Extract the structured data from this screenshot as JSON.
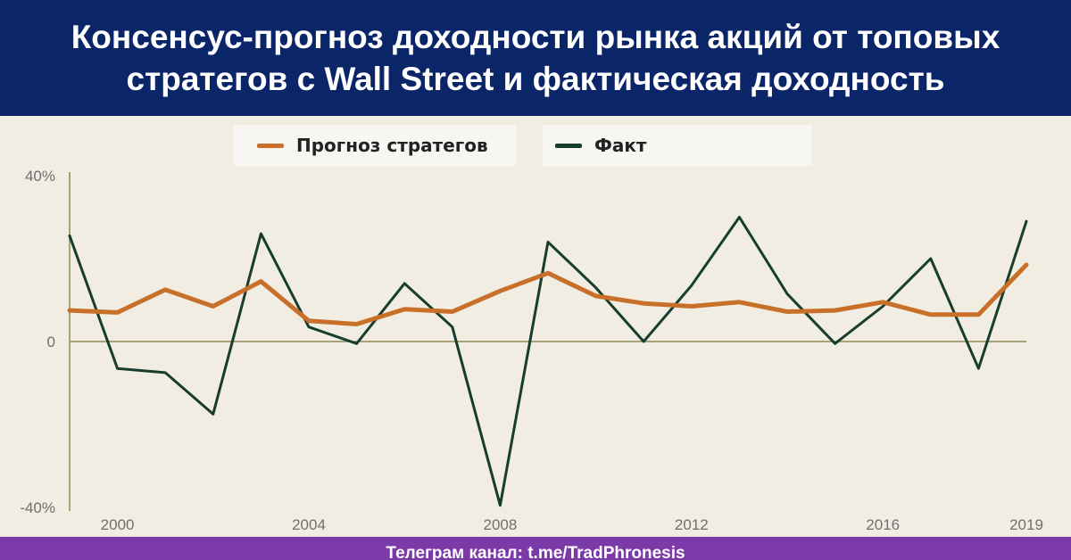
{
  "header": {
    "title": "Консенсус-прогноз доходности рынка акций от топовых\nстратегов с Wall Street и фактическая доходность"
  },
  "footer": {
    "text": "Телеграм канал: t.me/TradPhronesis"
  },
  "colors": {
    "header_bg": "#0b2569",
    "forecast": "#c8702a",
    "actual": "#173d2c",
    "axis": "#a9a17a",
    "footer_bg": "#7c3aa8",
    "background": "#f1ede2"
  },
  "chart_data": {
    "type": "line",
    "title": "",
    "xlabel": "",
    "ylabel": "",
    "x_range": [
      1999,
      2019
    ],
    "ylim": [
      -40,
      40
    ],
    "y_ticks": [
      {
        "value": 40,
        "label": "40%"
      },
      {
        "value": 0,
        "label": "0"
      },
      {
        "value": -40,
        "label": "-40%"
      }
    ],
    "x_ticks": [
      {
        "value": 2000,
        "label": "2000"
      },
      {
        "value": 2004,
        "label": "2004"
      },
      {
        "value": 2008,
        "label": "2008"
      },
      {
        "value": 2012,
        "label": "2012"
      },
      {
        "value": 2016,
        "label": "2016"
      },
      {
        "value": 2019,
        "label": "2019"
      }
    ],
    "grid": false,
    "legend_position": "top-center",
    "series": [
      {
        "name": "Прогноз стратегов",
        "color": "#c8702a",
        "x": [
          1999,
          2000,
          2001,
          2002,
          2003,
          2004,
          2005,
          2006,
          2007,
          2008,
          2009,
          2010,
          2011,
          2012,
          2013,
          2014,
          2015,
          2016,
          2017,
          2018,
          2019
        ],
        "values": [
          7.5,
          7,
          12.5,
          8.5,
          14.5,
          5,
          4.2,
          7.8,
          7.2,
          12.2,
          16.5,
          11,
          9.2,
          8.5,
          9.5,
          7.2,
          7.5,
          9.5,
          6.5,
          6.5,
          18.5
        ]
      },
      {
        "name": "Факт",
        "color": "#173d2c",
        "x": [
          1999,
          2000,
          2001,
          2002,
          2003,
          2004,
          2005,
          2006,
          2007,
          2008,
          2009,
          2010,
          2011,
          2012,
          2013,
          2014,
          2015,
          2016,
          2017,
          2018,
          2019
        ],
        "values": [
          25.5,
          -6.5,
          -7.5,
          -17.5,
          26,
          3.5,
          -0.5,
          14,
          3.5,
          -39.5,
          24,
          13,
          0,
          13.5,
          30,
          11.5,
          -0.5,
          8.5,
          20,
          -6.5,
          29
        ]
      }
    ]
  }
}
